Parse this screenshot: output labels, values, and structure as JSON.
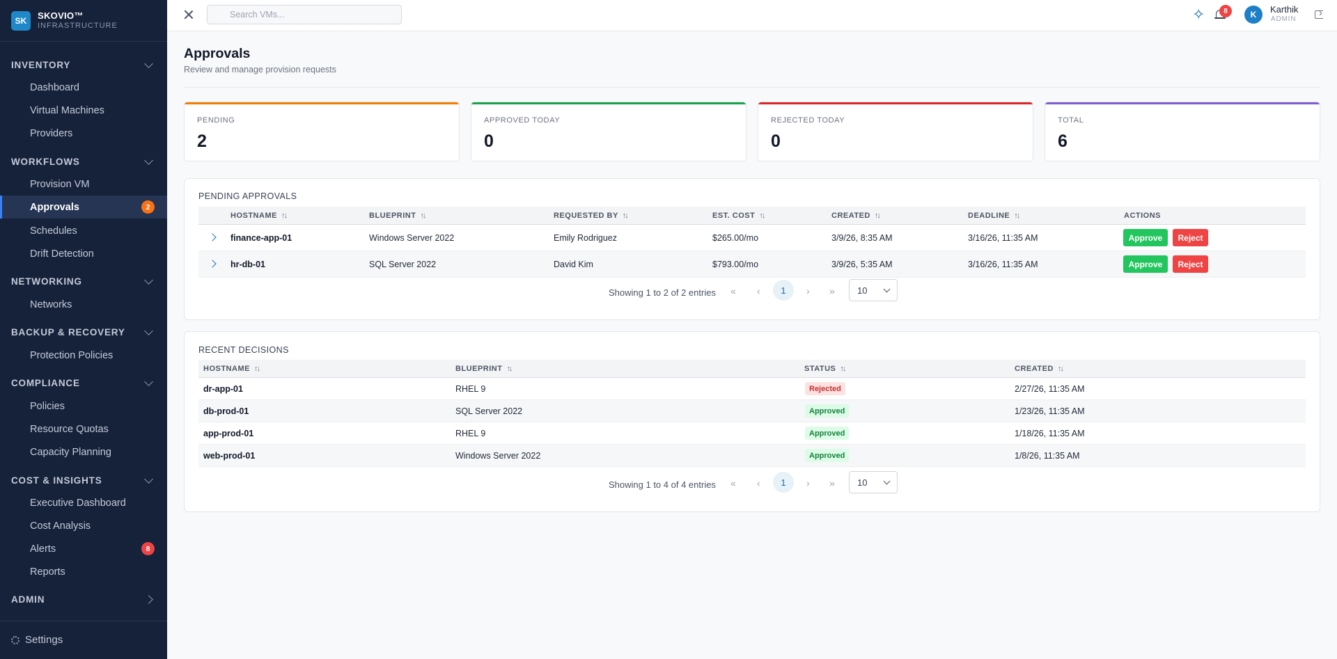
{
  "brand": {
    "logo": "SK",
    "name": "SKOVIO™",
    "subtitle": "INFRASTRUCTURE"
  },
  "sidebar": {
    "sections": [
      {
        "label": "INVENTORY",
        "items": [
          "Dashboard",
          "Virtual Machines",
          "Providers"
        ]
      },
      {
        "label": "WORKFLOWS",
        "items": [
          "Provision VM",
          "Approvals",
          "Schedules",
          "Drift Detection"
        ]
      },
      {
        "label": "NETWORKING",
        "items": [
          "Networks"
        ]
      },
      {
        "label": "BACKUP & RECOVERY",
        "items": [
          "Protection Policies"
        ]
      },
      {
        "label": "COMPLIANCE",
        "items": [
          "Policies",
          "Resource Quotas",
          "Capacity Planning"
        ]
      },
      {
        "label": "COST & INSIGHTS",
        "items": [
          "Executive Dashboard",
          "Cost Analysis",
          "Alerts",
          "Reports"
        ]
      },
      {
        "label": "ADMIN",
        "items": []
      }
    ],
    "approvals_badge": "2",
    "alerts_badge": "8",
    "settings_label": "Settings"
  },
  "topbar": {
    "search_placeholder": "Search VMs...",
    "notifications_count": "8",
    "user": {
      "initial": "K",
      "name": "Karthik",
      "role": "ADMIN"
    }
  },
  "page": {
    "title": "Approvals",
    "subtitle": "Review and manage provision requests"
  },
  "stats": [
    {
      "label": "PENDING",
      "value": "2",
      "color": "#f57c00"
    },
    {
      "label": "APPROVED TODAY",
      "value": "0",
      "color": "#16a34a"
    },
    {
      "label": "REJECTED TODAY",
      "value": "0",
      "color": "#dc2626"
    },
    {
      "label": "TOTAL",
      "value": "6",
      "color": "#7c5cd6"
    }
  ],
  "pending": {
    "title": "PENDING APPROVALS",
    "columns": [
      "HOSTNAME",
      "BLUEPRINT",
      "REQUESTED BY",
      "EST. COST",
      "CREATED",
      "DEADLINE",
      "ACTIONS"
    ],
    "rows": [
      {
        "hostname": "finance-app-01",
        "blueprint": "Windows Server 2022",
        "requested_by": "Emily Rodriguez",
        "cost": "$265.00/mo",
        "created": "3/9/26, 8:35 AM",
        "deadline": "3/16/26, 11:35 AM"
      },
      {
        "hostname": "hr-db-01",
        "blueprint": "SQL Server 2022",
        "requested_by": "David Kim",
        "cost": "$793.00/mo",
        "created": "3/9/26, 5:35 AM",
        "deadline": "3/16/26, 11:35 AM"
      }
    ],
    "approve_label": "Approve",
    "reject_label": "Reject",
    "summary": "Showing 1 to 2 of 2 entries",
    "page": "1",
    "per_page": "10"
  },
  "recent": {
    "title": "RECENT DECISIONS",
    "columns": [
      "HOSTNAME",
      "BLUEPRINT",
      "STATUS",
      "CREATED"
    ],
    "rows": [
      {
        "hostname": "dr-app-01",
        "blueprint": "RHEL 9",
        "status": "Rejected",
        "created": "2/27/26, 11:35 AM"
      },
      {
        "hostname": "db-prod-01",
        "blueprint": "SQL Server 2022",
        "status": "Approved",
        "created": "1/23/26, 11:35 AM"
      },
      {
        "hostname": "app-prod-01",
        "blueprint": "RHEL 9",
        "status": "Approved",
        "created": "1/18/26, 11:35 AM"
      },
      {
        "hostname": "web-prod-01",
        "blueprint": "Windows Server 2022",
        "status": "Approved",
        "created": "1/8/26, 11:35 AM"
      }
    ],
    "summary": "Showing 1 to 4 of 4 entries",
    "page": "1",
    "per_page": "10"
  },
  "pager_glyphs": {
    "first": "«",
    "prev": "‹",
    "next": "›",
    "last": "»"
  },
  "icons": {
    "sparkle": "✧",
    "sort": "↑↓"
  }
}
